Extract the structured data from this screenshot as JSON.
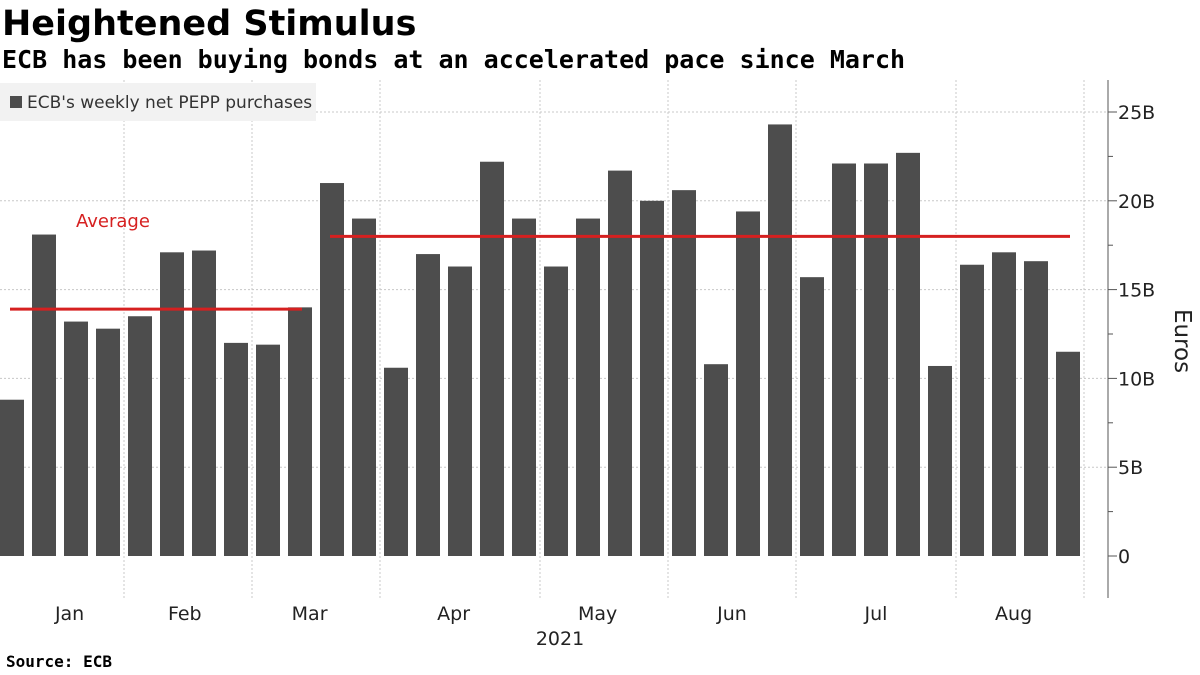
{
  "header": {
    "title": "Heightened Stimulus",
    "subtitle": "ECB has been buying bonds at an accelerated pace since March"
  },
  "footer": {
    "source": "Source: ECB"
  },
  "chart_data": {
    "type": "bar",
    "title": "Heightened Stimulus",
    "subtitle": "ECB has been buying bonds at an accelerated pace since March",
    "xlabel": "2021",
    "ylabel": "Euros",
    "ylim": [
      0,
      25
    ],
    "y_unit": "B",
    "y_ticks": [
      0,
      5,
      10,
      15,
      20,
      25
    ],
    "y_tick_labels": [
      "0",
      "5B",
      "10B",
      "15B",
      "20B",
      "25B"
    ],
    "y_axis_side": "right",
    "grid": true,
    "legend_placement": "top-left",
    "colors": {
      "bar": "#4d4d4d",
      "average": "#d62020",
      "grid": "#c8c8c8"
    },
    "months": [
      "Jan",
      "Feb",
      "Mar",
      "Apr",
      "May",
      "Jun",
      "Jul",
      "Aug"
    ],
    "year_label": "2021",
    "series": [
      {
        "name": "ECB's weekly net PEPP purchases",
        "values": [
          8.8,
          18.1,
          13.2,
          12.8,
          13.5,
          17.1,
          17.2,
          12.0,
          11.9,
          14.0,
          21.0,
          19.0,
          10.6,
          17.0,
          16.3,
          22.2,
          19.0,
          16.3,
          19.0,
          21.7,
          20.0,
          20.6,
          10.8,
          19.4,
          24.3,
          15.7,
          22.1,
          22.1,
          22.7,
          10.7,
          16.4,
          17.1,
          16.6,
          11.5
        ]
      }
    ],
    "annotations": [
      {
        "label": "Average",
        "value": 13.9,
        "from_bar": 0,
        "to_bar": 9
      },
      {
        "label": "",
        "value": 18.0,
        "from_bar": 10,
        "to_bar": 33
      }
    ]
  }
}
